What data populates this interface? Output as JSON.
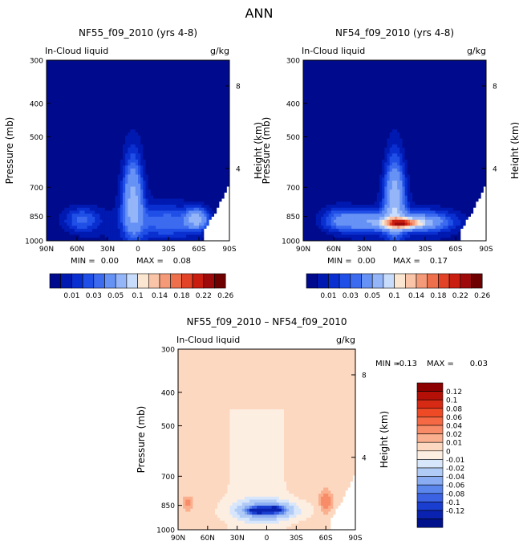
{
  "page_title": "ANN",
  "chart_data": [
    {
      "type": "contour",
      "title": "NF55_f09_2010 (yrs 4-8)",
      "field_label": "In-Cloud liquid",
      "units": "g/kg",
      "ylabel": "Pressure (mb)",
      "ylabel_right": "Height (km)",
      "x_ticks": [
        "90N",
        "60N",
        "30N",
        "0",
        "30S",
        "60S",
        "90S"
      ],
      "y_ticks": [
        300,
        400,
        500,
        700,
        850,
        1000
      ],
      "height_ticks": [
        8,
        4
      ],
      "ylim": [
        300,
        1000
      ],
      "min_label": "MIN =",
      "min_value": "0.00",
      "max_label": "MAX =",
      "max_value": "0.08",
      "features": [
        {
          "lat": 5,
          "p": 760,
          "peak": 0.08,
          "lat_width": 10,
          "p_width": 200
        },
        {
          "lat": -58,
          "p": 865,
          "peak": 0.07,
          "lat_width": 10,
          "p_width": 55
        },
        {
          "lat": -30,
          "p": 880,
          "peak": 0.04,
          "lat_width": 35,
          "p_width": 90
        },
        {
          "lat": 55,
          "p": 870,
          "peak": 0.04,
          "lat_width": 18,
          "p_width": 70
        }
      ]
    },
    {
      "type": "contour",
      "title": "NF54_f09_2010 (yrs 4-8)",
      "field_label": "In-Cloud liquid",
      "units": "g/kg",
      "ylabel": "Pressure (mb)",
      "ylabel_right": "Height (km)",
      "x_ticks": [
        "90N",
        "60N",
        "30N",
        "0",
        "30S",
        "60S",
        "90S"
      ],
      "y_ticks": [
        300,
        400,
        500,
        700,
        850,
        1000
      ],
      "height_ticks": [
        8,
        4
      ],
      "ylim": [
        300,
        1000
      ],
      "min_label": "MIN =",
      "min_value": "0.00",
      "max_label": "MAX =",
      "max_value": "0.17",
      "features": [
        {
          "lat": -8,
          "p": 890,
          "peak": 0.17,
          "lat_width": 18,
          "p_width": 28
        },
        {
          "lat": 0,
          "p": 760,
          "peak": 0.09,
          "lat_width": 10,
          "p_width": 190
        },
        {
          "lat": -30,
          "p": 880,
          "peak": 0.06,
          "lat_width": 30,
          "p_width": 60
        },
        {
          "lat": 25,
          "p": 880,
          "peak": 0.06,
          "lat_width": 25,
          "p_width": 60
        },
        {
          "lat": 55,
          "p": 870,
          "peak": 0.04,
          "lat_width": 18,
          "p_width": 70
        }
      ]
    },
    {
      "type": "contour",
      "title": "NF55_f09_2010 – NF54_f09_2010",
      "field_label": "In-Cloud liquid",
      "units": "g/kg",
      "ylabel": "Pressure (mb)",
      "ylabel_right": "Height (km)",
      "x_ticks": [
        "90N",
        "60N",
        "30N",
        "0",
        "30S",
        "60S",
        "90S"
      ],
      "y_ticks": [
        300,
        400,
        500,
        700,
        850,
        1000
      ],
      "height_ticks": [
        8,
        4
      ],
      "ylim": [
        300,
        1000
      ],
      "min_label": "MIN =",
      "min_value": "-0.13",
      "max_label": "MAX =",
      "max_value": "0.03",
      "features": [
        {
          "lat": 10,
          "p": 880,
          "peak": -0.12,
          "lat_width": 10,
          "p_width": 22
        },
        {
          "lat": -8,
          "p": 875,
          "peak": -0.12,
          "lat_width": 10,
          "p_width": 22
        },
        {
          "lat": 0,
          "p": 880,
          "peak": -0.05,
          "lat_width": 30,
          "p_width": 55
        },
        {
          "lat": -60,
          "p": 830,
          "peak": 0.03,
          "lat_width": 6,
          "p_width": 60
        },
        {
          "lat": 80,
          "p": 840,
          "peak": 0.02,
          "lat_width": 5,
          "p_width": 40
        }
      ]
    }
  ],
  "colorbars": [
    {
      "orientation": "horizontal",
      "labels": [
        "0.01",
        "0.03",
        "0.05",
        "0.1",
        "0.14",
        "0.18",
        "0.22",
        "0.26"
      ],
      "colors": [
        "#000a8c",
        "#0019b0",
        "#0a2fd0",
        "#1f4fe6",
        "#3d6bf0",
        "#6691f5",
        "#94b5f8",
        "#c8dcfb",
        "#fbe6d2",
        "#f9c4a8",
        "#f49a78",
        "#ee6f4b",
        "#e24327",
        "#c91d10",
        "#9e0a0a",
        "#6e0000"
      ]
    },
    {
      "orientation": "vertical",
      "labels": [
        "0.12",
        "0.1",
        "0.08",
        "0.06",
        "0.04",
        "0.02",
        "0.01",
        "0",
        "-0.01",
        "-0.02",
        "-0.04",
        "-0.06",
        "-0.08",
        "-0.1",
        "-0.12"
      ],
      "colors": [
        "#8c0000",
        "#b41008",
        "#d62a14",
        "#ee4a26",
        "#f56a44",
        "#f88c68",
        "#fab08e",
        "#fdd8c0",
        "#fdeee2",
        "#d8e6fb",
        "#b0cbf6",
        "#8aacf2",
        "#5b86ec",
        "#3a62e2",
        "#1a3fd0",
        "#0a22b0",
        "#00118c"
      ]
    }
  ]
}
